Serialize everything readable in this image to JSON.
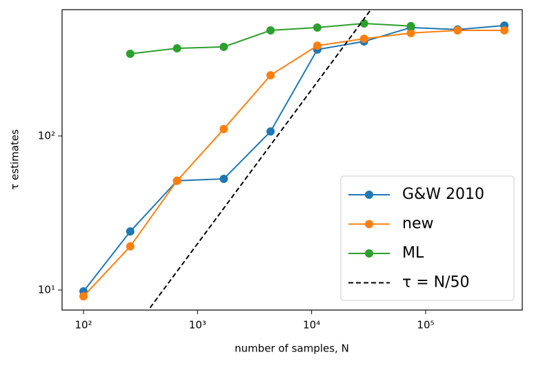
{
  "chart_data": {
    "type": "line",
    "log_x": true,
    "log_y": true,
    "x_label": "number of samples, N",
    "y_label": "τ estimates",
    "x": [
      100,
      257,
      661,
      1698,
      4365,
      11220,
      28840,
      74130,
      190500,
      489800
    ],
    "series": [
      {
        "name": "G&W 2010",
        "color": "#1f77b4",
        "marker": true,
        "values": [
          9.8,
          24.0,
          51.2,
          52.7,
          107,
          364,
          411,
          506,
          491,
          521
        ]
      },
      {
        "name": "new",
        "color": "#ff7f0e",
        "marker": true,
        "values": [
          9.1,
          19.2,
          51.2,
          111,
          248,
          386,
          428,
          466,
          485,
          485
        ]
      },
      {
        "name": "ML",
        "color": "#2ca02c",
        "marker": true,
        "values": [
          null,
          342,
          371,
          379,
          485,
          506,
          538,
          517,
          null,
          null
        ]
      },
      {
        "name": "τ = N/50",
        "color": "#000000",
        "dashed": true,
        "marker": false,
        "x": [
          350,
          33000
        ],
        "values": [
          7,
          660
        ]
      }
    ],
    "xlim": [
      64.9,
      703000
    ],
    "ylim": [
      7.41,
      661
    ],
    "xticks": [
      {
        "value": 100,
        "label": "10²"
      },
      {
        "value": 1000,
        "label": "10³"
      },
      {
        "value": 10000,
        "label": "10⁴"
      },
      {
        "value": 100000,
        "label": "10⁵"
      }
    ],
    "yticks": [
      {
        "value": 10,
        "label": "10¹"
      },
      {
        "value": 100,
        "label": "10²"
      }
    ],
    "grid": false,
    "legend": "lower right"
  }
}
